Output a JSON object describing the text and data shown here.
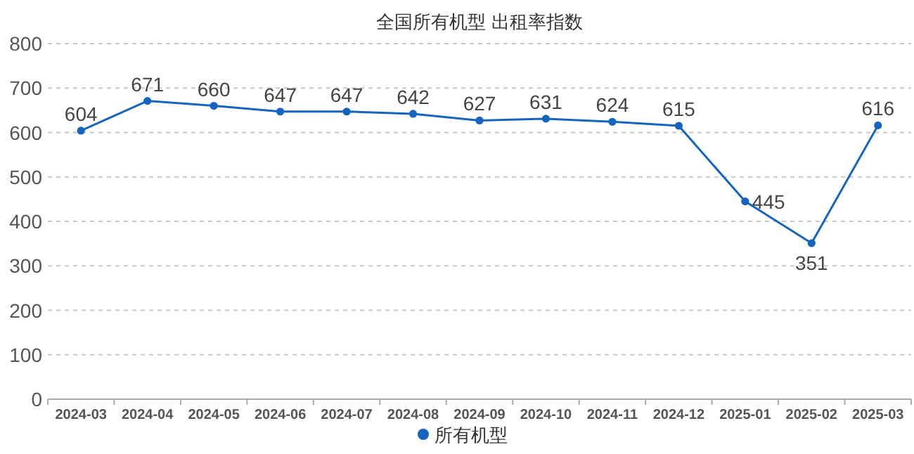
{
  "chart_data": {
    "type": "line",
    "title": "全国所有机型  出租率指数",
    "categories": [
      "2024-03",
      "2024-04",
      "2024-05",
      "2024-06",
      "2024-07",
      "2024-08",
      "2024-09",
      "2024-10",
      "2024-11",
      "2024-12",
      "2025-01",
      "2025-02",
      "2025-03"
    ],
    "series": [
      {
        "name": "所有机型",
        "color": "#1565c0",
        "values": [
          604,
          671,
          660,
          647,
          647,
          642,
          627,
          631,
          624,
          615,
          445,
          351,
          616
        ]
      }
    ],
    "ylim": [
      0,
      800
    ],
    "yticks": [
      0,
      100,
      200,
      300,
      400,
      500,
      600,
      700,
      800
    ],
    "grid": "y",
    "legend": "bottom",
    "marker": "circle",
    "line_style": "solid",
    "data_labels": true
  }
}
